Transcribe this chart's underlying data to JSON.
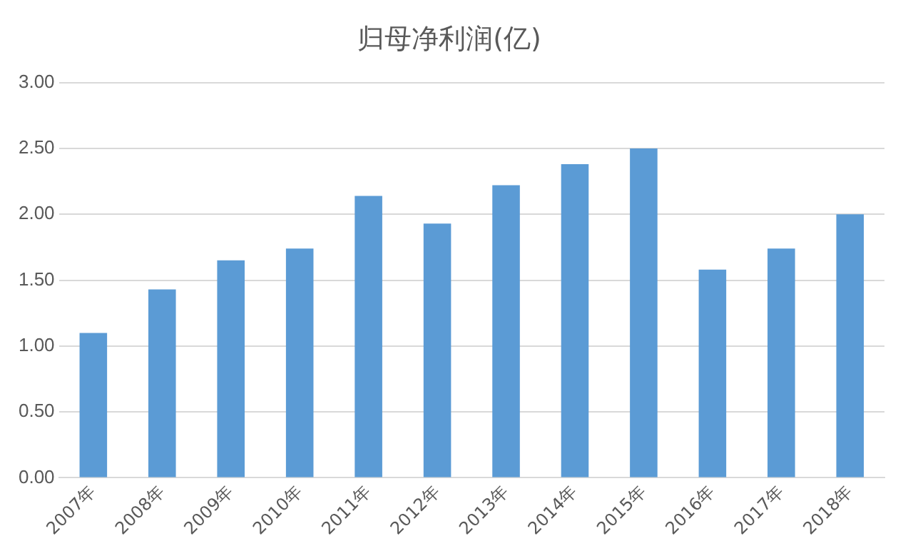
{
  "chart_data": {
    "type": "bar",
    "title": "归母净利润(亿)",
    "categories": [
      "2007年",
      "2008年",
      "2009年",
      "2010年",
      "2011年",
      "2012年",
      "2013年",
      "2014年",
      "2015年",
      "2016年",
      "2017年",
      "2018年"
    ],
    "values": [
      1.1,
      1.43,
      1.65,
      1.74,
      2.14,
      1.93,
      2.22,
      2.38,
      2.5,
      1.58,
      1.74,
      2.0
    ],
    "color": "#5b9bd5",
    "ylim": [
      0,
      3
    ],
    "yticks": [
      {
        "value": 0,
        "label": "0.00"
      },
      {
        "value": 0.5,
        "label": "0.50"
      },
      {
        "value": 1,
        "label": "1.00"
      },
      {
        "value": 1.5,
        "label": "1.50"
      },
      {
        "value": 2,
        "label": "2.00"
      },
      {
        "value": 2.5,
        "label": "2.50"
      },
      {
        "value": 3,
        "label": "3.00"
      }
    ],
    "grid": "y"
  }
}
